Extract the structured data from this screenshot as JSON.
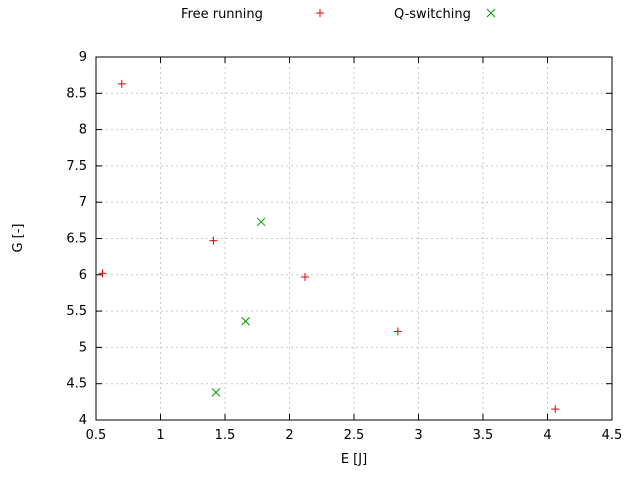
{
  "figure": {
    "background": "#ffffff",
    "axis_color": "#000000",
    "grid_color": "#c9c9c9"
  },
  "chart_data": {
    "type": "scatter",
    "title": "",
    "xlabel": "E [J]",
    "ylabel": "G [-]",
    "xlim": [
      0.5,
      4.5
    ],
    "ylim": [
      4,
      9
    ],
    "xticks": [
      0.5,
      1,
      1.5,
      2,
      2.5,
      3,
      3.5,
      4,
      4.5
    ],
    "yticks": [
      4,
      4.5,
      5,
      5.5,
      6,
      6.5,
      7,
      7.5,
      8,
      8.5,
      9
    ],
    "grid": true,
    "legend_position": "top-center",
    "series": [
      {
        "name": "Free running",
        "marker": "plus",
        "color": "#e00000",
        "points": [
          [
            0.55,
            6.02
          ],
          [
            0.7,
            8.63
          ],
          [
            1.41,
            6.47
          ],
          [
            2.12,
            5.97
          ],
          [
            2.84,
            5.22
          ],
          [
            4.06,
            4.15
          ]
        ]
      },
      {
        "name": "Q-switching",
        "marker": "x",
        "color": "#009e00",
        "points": [
          [
            1.43,
            4.38
          ],
          [
            1.66,
            5.36
          ],
          [
            1.78,
            6.73
          ]
        ]
      }
    ]
  }
}
